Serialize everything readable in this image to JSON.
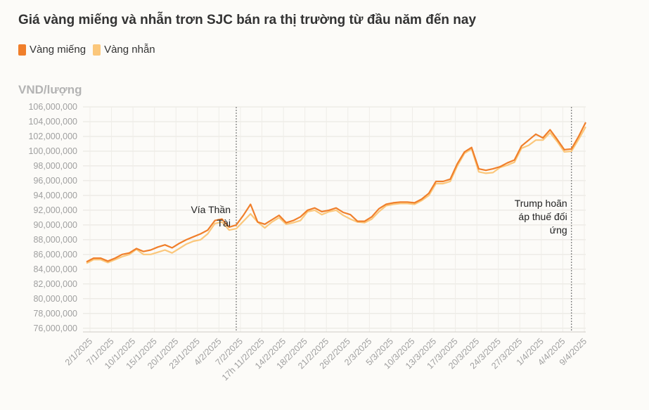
{
  "chart_data": {
    "type": "line",
    "title": "Giá vàng miếng và nhẫn trơn SJC bán ra thị trường từ đầu năm đến nay",
    "ylabel": "VND/lượng",
    "ylim": [
      75500000,
      106000000
    ],
    "yticks": [
      106000000,
      104000000,
      102000000,
      100000000,
      98000000,
      96000000,
      94000000,
      92000000,
      90000000,
      88000000,
      86000000,
      84000000,
      82000000,
      80000000,
      78000000,
      76000000
    ],
    "ytick_labels": [
      "106,000,000",
      "104,000,000",
      "102,000,000",
      "100,000,000",
      "98,000,000",
      "96,000,000",
      "94,000,000",
      "92,000,000",
      "90,000,000",
      "88,000,000",
      "86,000,000",
      "84,000,000",
      "82,000,000",
      "80,000,000",
      "78,000,000",
      "76,000,000"
    ],
    "xtick_labels": [
      "2/1/2025",
      "7/1/2025",
      "10/1/2025",
      "15/1/2025",
      "20/1/2025",
      "23/1/2025",
      "4/2/2025",
      "7/2/2025",
      "17h 11/2/2025",
      "14/2/2025",
      "18/2/2025",
      "21/2/2025",
      "26/2/2025",
      "2/3/2025",
      "5/3/2025",
      "10/3/2025",
      "13/3/2025",
      "17/3/2025",
      "20/3/2025",
      "24/3/2025",
      "27/3/2025",
      "1/4/2025",
      "4/4/2025",
      "9/4/2025"
    ],
    "grid": true,
    "legend_position": "top-left",
    "series": [
      {
        "name": "Vàng miếng",
        "color": "#f07f2b",
        "values": [
          85000000,
          85500000,
          85500000,
          85100000,
          85500000,
          86000000,
          86200000,
          86800000,
          86400000,
          86600000,
          87000000,
          87300000,
          86900000,
          87500000,
          88000000,
          88400000,
          88800000,
          89300000,
          90600000,
          90800000,
          89700000,
          90000000,
          91300000,
          92800000,
          90400000,
          90100000,
          90700000,
          91300000,
          90300000,
          90600000,
          91100000,
          92000000,
          92300000,
          91800000,
          92000000,
          92300000,
          91700000,
          91400000,
          90500000,
          90500000,
          91100000,
          92200000,
          92800000,
          93000000,
          93100000,
          93100000,
          93000000,
          93500000,
          94300000,
          95900000,
          95900000,
          96200000,
          98300000,
          99900000,
          100500000,
          97600000,
          97400000,
          97600000,
          97900000,
          98400000,
          98800000,
          100700000,
          101500000,
          102300000,
          101800000,
          102900000,
          101600000,
          100200000,
          100300000,
          102000000,
          103900000
        ],
        "fill_level": null
      },
      {
        "name": "Vàng nhẫn",
        "color": "#fbc77b",
        "values": [
          84800000,
          85300000,
          85300000,
          84900000,
          85300000,
          85700000,
          86000000,
          86700000,
          86000000,
          86000000,
          86300000,
          86600000,
          86200000,
          86800000,
          87400000,
          87800000,
          88000000,
          88800000,
          90200000,
          90400000,
          89300000,
          89500000,
          90500000,
          91500000,
          90400000,
          89600000,
          90400000,
          91000000,
          90100000,
          90300000,
          90600000,
          91800000,
          92000000,
          91400000,
          91800000,
          92000000,
          91300000,
          90800000,
          90400000,
          90300000,
          90800000,
          91800000,
          92600000,
          92800000,
          92900000,
          92900000,
          92800000,
          93300000,
          94000000,
          95600000,
          95600000,
          95900000,
          98000000,
          99700000,
          100300000,
          97200000,
          97000000,
          97100000,
          97800000,
          98100000,
          98500000,
          100400000,
          100800000,
          101500000,
          101500000,
          102500000,
          101300000,
          99900000,
          100000000,
          101600000,
          103300000
        ]
      }
    ],
    "annotations": [
      {
        "lines": [
          "Vía Thần",
          "Tài"
        ],
        "at_index": 21
      },
      {
        "lines": [
          "Trump hoãn",
          "áp thuế đối",
          "ứng"
        ],
        "at_index": 68
      }
    ]
  }
}
